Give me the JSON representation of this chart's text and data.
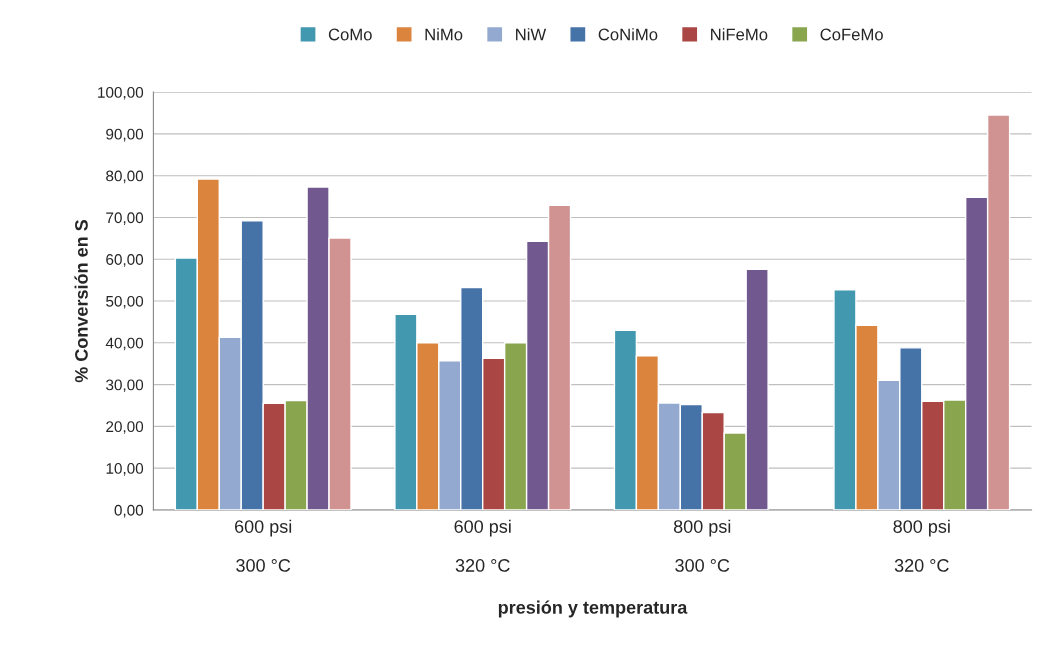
{
  "chart_data": {
    "type": "bar",
    "xlabel": "presión y temperatura",
    "ylabel": "% Conversión en S",
    "categories": [
      "600 psi\n\n300 °C",
      "600 psi\n\n320 °C",
      "800 psi\n\n300 °C",
      "800 psi\n\n320 °C"
    ],
    "series": [
      {
        "name": "CoMo",
        "color": "#4198af",
        "values": [
          60.3,
          46.8,
          43.0,
          52.7
        ]
      },
      {
        "name": "NiMo",
        "color": "#db843d",
        "values": [
          79.2,
          40.0,
          36.9,
          44.2
        ]
      },
      {
        "name": "NiW",
        "color": "#93a9cf",
        "values": [
          41.3,
          35.7,
          25.6,
          31.0
        ]
      },
      {
        "name": "CoNiMo",
        "color": "#4572a7",
        "values": [
          69.2,
          53.2,
          25.2,
          38.8
        ]
      },
      {
        "name": "NiFeMo",
        "color": "#aa4643",
        "values": [
          25.5,
          36.3,
          23.3,
          26.0
        ]
      },
      {
        "name": "CoFeMo",
        "color": "#89a54e",
        "values": [
          26.2,
          40.0,
          18.4,
          26.3
        ]
      },
      {
        "color": "#71588f",
        "values": [
          77.3,
          64.3,
          57.6,
          74.8
        ]
      },
      {
        "color": "#d09392",
        "values": [
          65.1,
          72.9,
          null,
          94.5
        ]
      }
    ],
    "ylim": [
      0,
      100
    ],
    "yticks": [
      {
        "value": 0,
        "label": "0,00"
      },
      {
        "value": 10,
        "label": "10,00"
      },
      {
        "value": 20,
        "label": "20,00"
      },
      {
        "value": 30,
        "label": "30,00"
      },
      {
        "value": 40,
        "label": "40,00"
      },
      {
        "value": 50,
        "label": "50,00"
      },
      {
        "value": 60,
        "label": "60,00"
      },
      {
        "value": 70,
        "label": "70,00"
      },
      {
        "value": 80,
        "label": "80,00"
      },
      {
        "value": 90,
        "label": "90,00"
      },
      {
        "value": 100,
        "label": "100,00"
      }
    ],
    "grid": "y",
    "legend": "top"
  }
}
